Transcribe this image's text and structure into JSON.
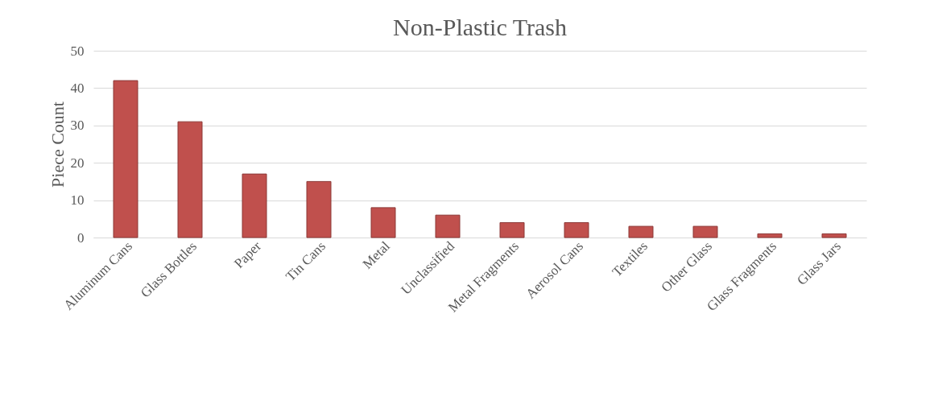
{
  "chart_data": {
    "type": "bar",
    "title": "Non-Plastic Trash",
    "ylabel": "Piece Count",
    "categories": [
      "Aluminum Cans",
      "Glass Bottles",
      "Paper",
      "Tin Cans",
      "Metal",
      "Unclassified",
      "Metal Fragments",
      "Aerosol Cans",
      "Textiles",
      "Other Glass",
      "Glass Fragments",
      "Glass Jars"
    ],
    "values": [
      42,
      31,
      17,
      15,
      8,
      6,
      4,
      4,
      3,
      3,
      1,
      1
    ],
    "color": "#c0504d",
    "ylim": [
      0,
      50
    ],
    "yticks": [
      0,
      10,
      20,
      30,
      40,
      50
    ],
    "grid": "y"
  }
}
